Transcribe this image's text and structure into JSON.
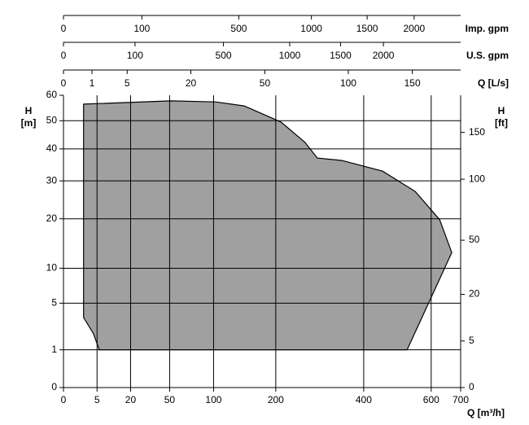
{
  "chart_data": {
    "type": "area",
    "scale": "sqrt",
    "color": "#a0a0a0",
    "grid": true,
    "x": [
      1.8,
      51,
      103,
      145,
      210,
      259,
      286,
      344,
      452,
      549,
      628,
      669,
      524,
      5.7,
      4.0,
      1.8
    ],
    "values": [
      56.4,
      57.7,
      57.3,
      55.7,
      49.5,
      42.2,
      37,
      36.2,
      32.9,
      27,
      19.8,
      12.8,
      1,
      1,
      2.03,
      3.44
    ],
    "xlabel": "Q [m³/h]",
    "xlim": [
      0,
      700
    ],
    "xticks": [
      0,
      5,
      20,
      50,
      100,
      200,
      400,
      600,
      700
    ],
    "ylabel": [
      "H",
      "[m]"
    ],
    "ylim": [
      0,
      60
    ],
    "yticks": [
      0,
      1,
      5,
      10,
      20,
      30,
      40,
      50,
      60
    ],
    "y2label": [
      "H",
      "[ft]"
    ],
    "y2lim": [
      0,
      196.85
    ],
    "y2ticks": [
      0,
      5,
      20,
      50,
      100,
      150
    ],
    "top_axes": [
      {
        "label": "Imp. gpm",
        "lim": [
          0,
          2566
        ],
        "ticks": [
          0,
          100,
          500,
          1000,
          1500,
          2000
        ]
      },
      {
        "label": "U.S. gpm",
        "lim": [
          0,
          3082
        ],
        "ticks": [
          0,
          100,
          500,
          1000,
          1500,
          2000
        ]
      },
      {
        "label": "Q [L/s]",
        "lim": [
          0,
          194.44
        ],
        "ticks": [
          0,
          1,
          5,
          20,
          50,
          100,
          150
        ]
      }
    ]
  }
}
